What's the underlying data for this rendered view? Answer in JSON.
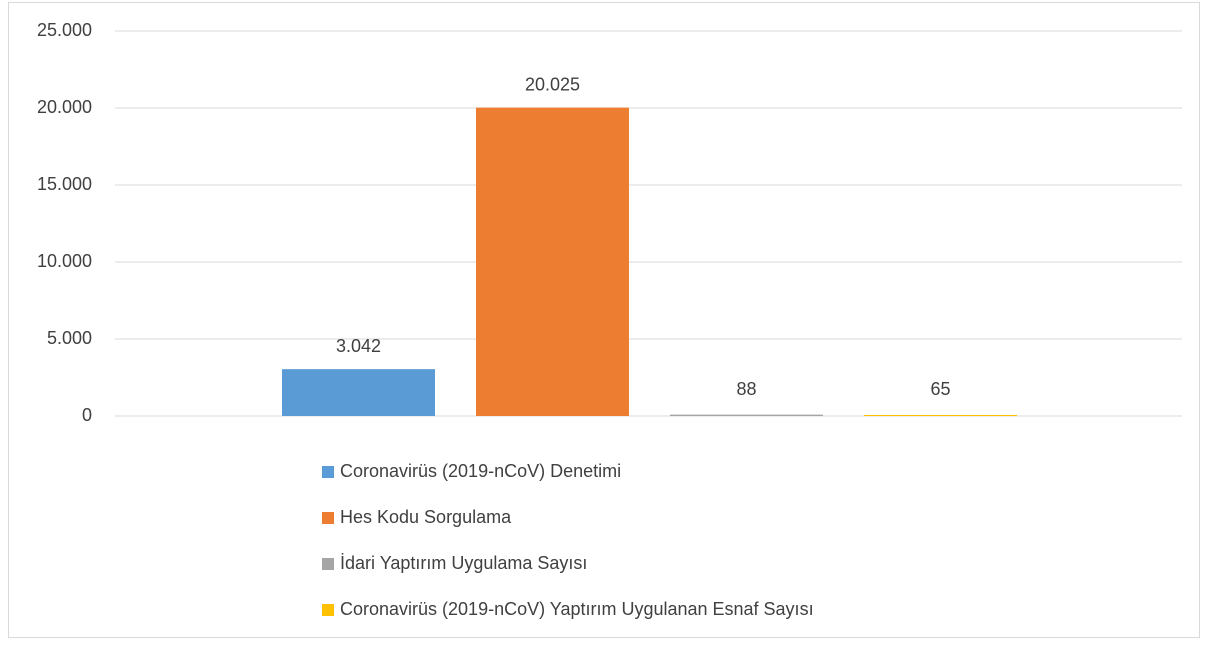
{
  "chart_data": {
    "type": "bar",
    "series": [
      {
        "name": "Coronavirüs (2019-nCoV) Denetimi",
        "color": "#5b9bd5",
        "values": [
          3042
        ],
        "value_labels": [
          "3.042"
        ]
      },
      {
        "name": "Hes Kodu Sorgulama",
        "color": "#ed7d31",
        "values": [
          20025
        ],
        "value_labels": [
          "20.025"
        ]
      },
      {
        "name": "İdari Yaptırım Uygulama Sayısı",
        "color": "#a5a5a5",
        "values": [
          88
        ]
      },
      {
        "name": "Coronavirüs (2019-nCoV) Yaptırım Uygulanan Esnaf Sayısı",
        "color": "#ffc000",
        "values": [
          65
        ]
      }
    ],
    "ylim": [
      0,
      25000
    ],
    "yticks": [
      0,
      {
        "value": 5000,
        "label": "5.000"
      },
      {
        "value": 10000,
        "label": "10.000"
      },
      {
        "value": 15000,
        "label": "15.000"
      },
      {
        "value": 20000,
        "label": "20.000"
      },
      {
        "value": 25000,
        "label": "25.000"
      }
    ],
    "grid": true
  }
}
